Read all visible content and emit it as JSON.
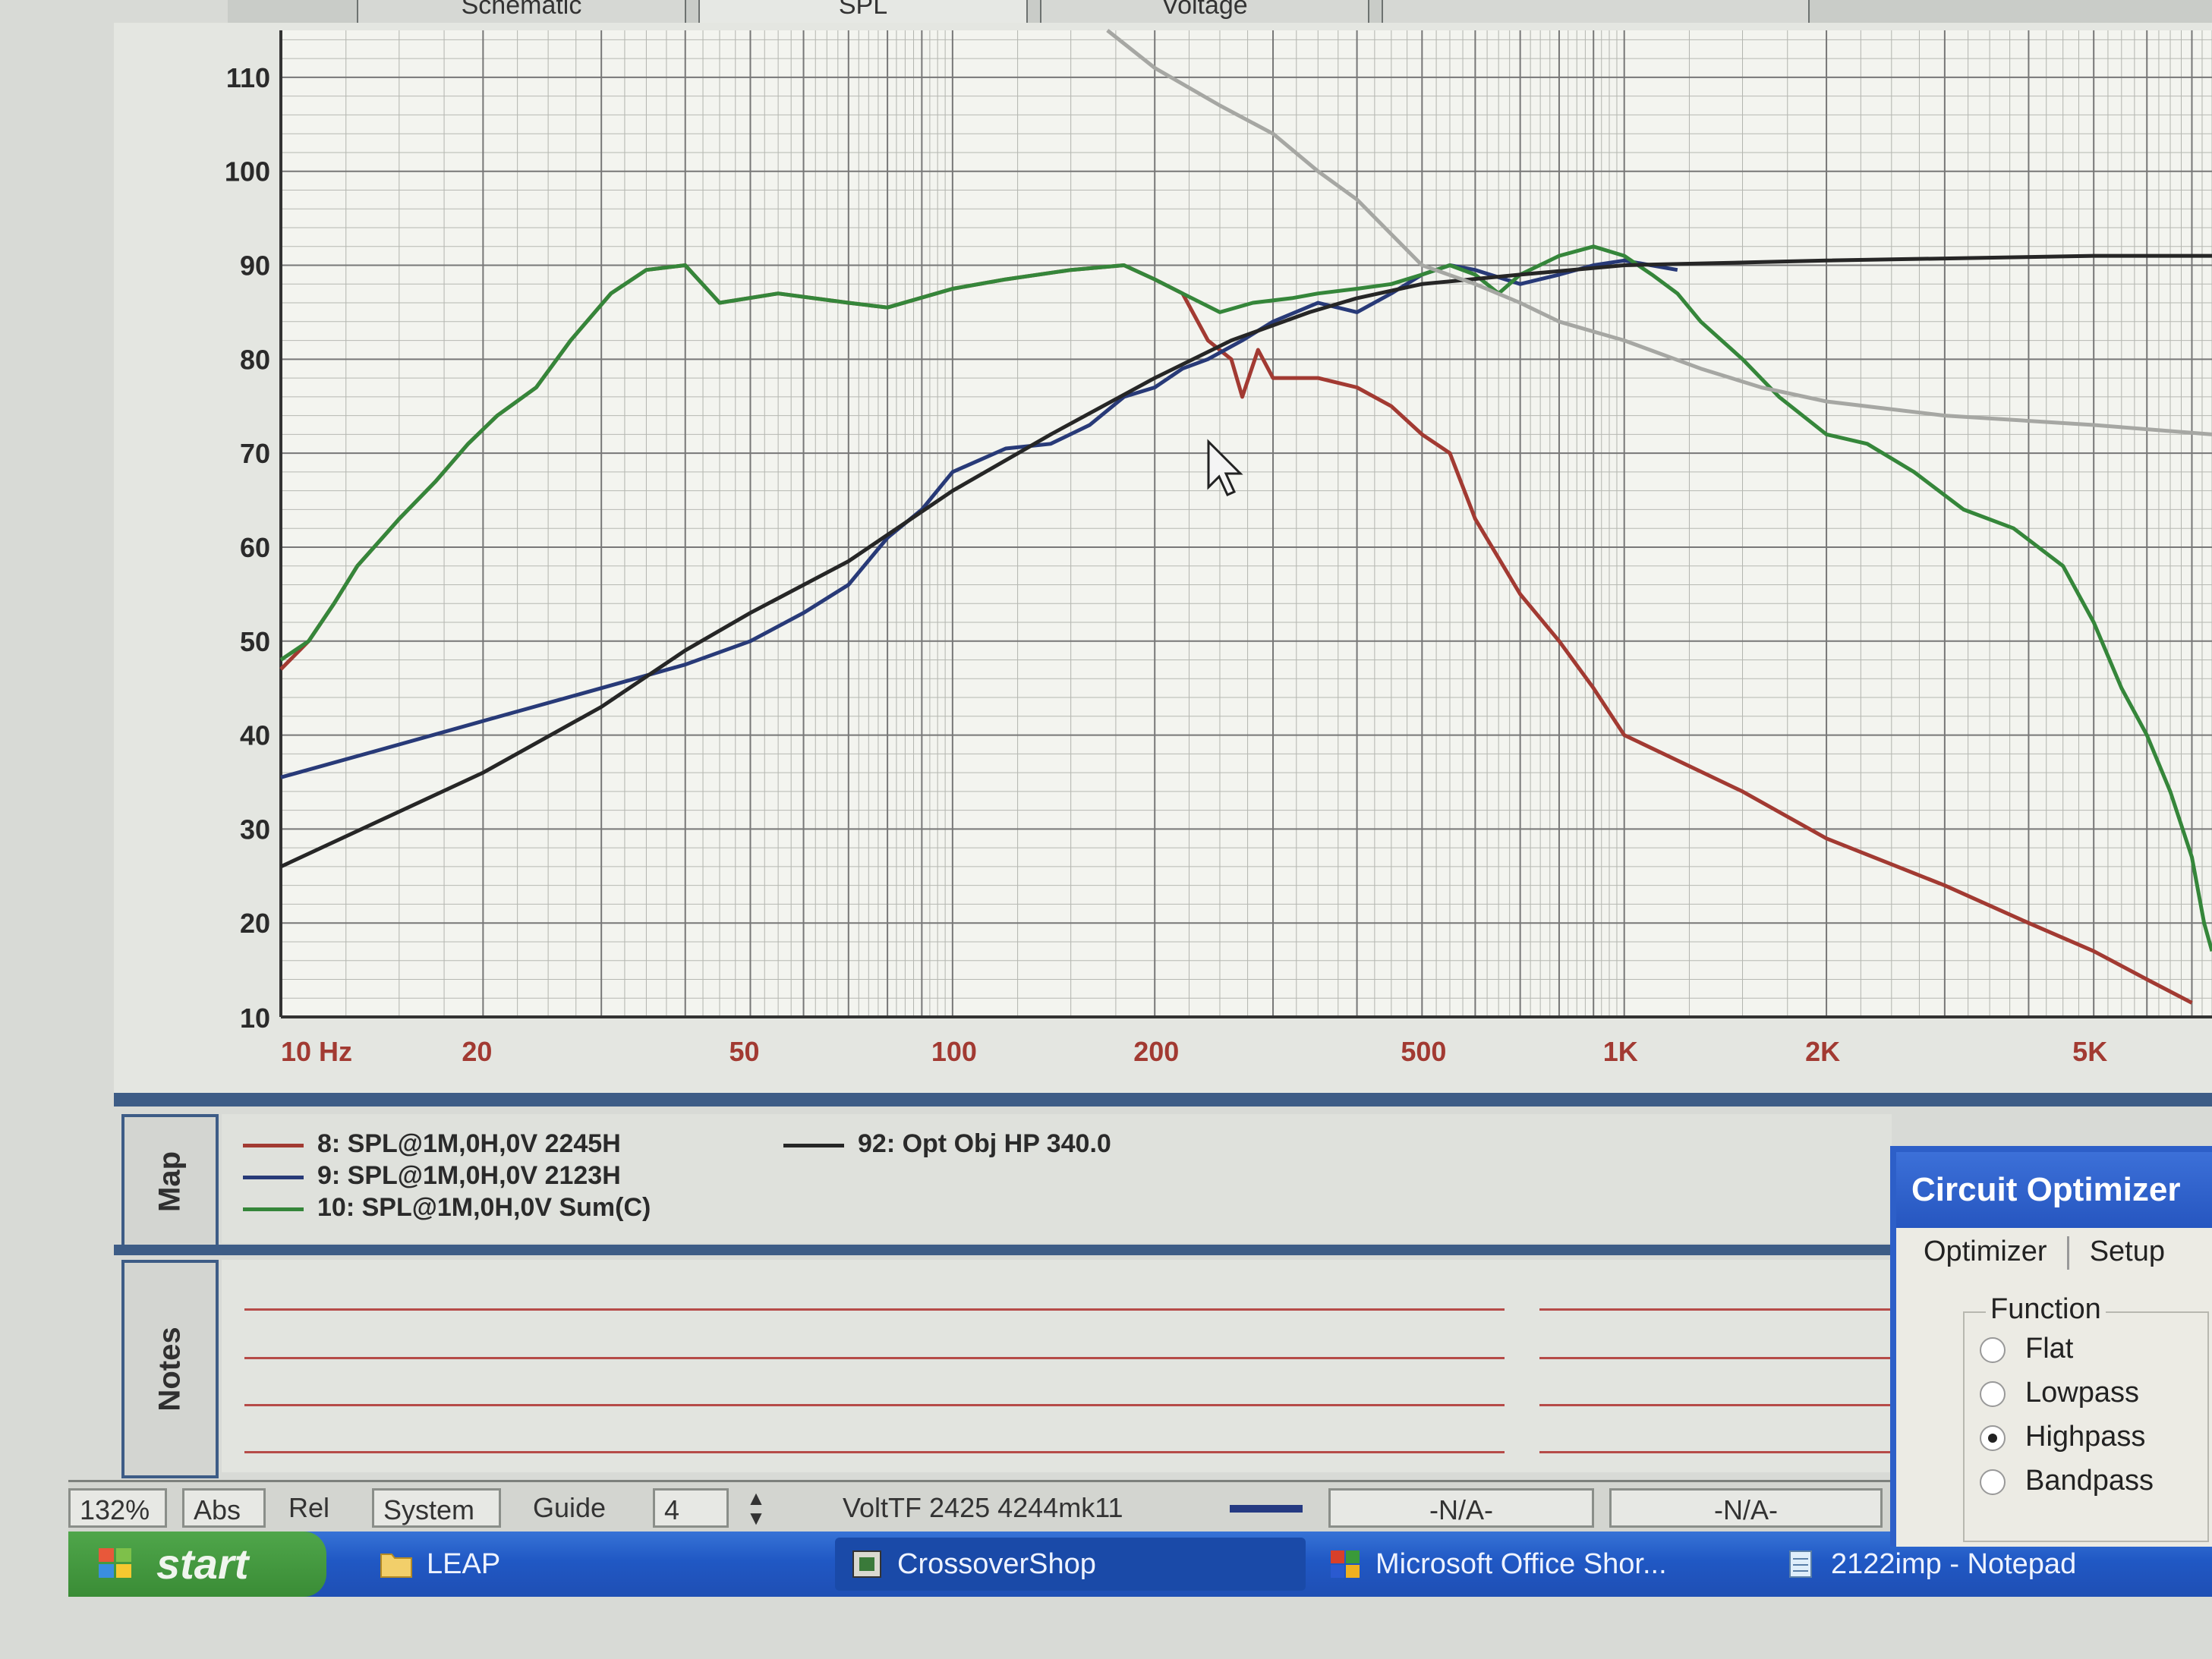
{
  "tabs": [
    "Schematic",
    "SPL",
    "Voltage",
    ""
  ],
  "chart_data": {
    "type": "line",
    "xscale": "log",
    "xlim": [
      10,
      7500
    ],
    "ylim": [
      10,
      115
    ],
    "ytick_values": [
      20,
      30,
      40,
      50,
      60,
      70,
      80,
      90,
      100,
      110
    ],
    "ytick_labels": [
      "20",
      "30",
      "40",
      "50",
      "60",
      "70",
      "80",
      "90",
      "100",
      "110"
    ],
    "xtick_values": [
      10,
      20,
      50,
      100,
      200,
      500,
      1000,
      2000,
      5000
    ],
    "xtick_labels": [
      "10  Hz",
      "20",
      "50",
      "100",
      "200",
      "500",
      "1K",
      "2K",
      "5K"
    ],
    "y_bottom_label": "10",
    "grid": true,
    "series": [
      {
        "name": "8: SPL@1M,0H,0V 2245H",
        "color": "#a23a32",
        "points": [
          [
            10,
            47
          ],
          [
            11,
            50
          ],
          [
            12,
            54
          ],
          [
            13,
            58
          ],
          [
            15,
            63
          ],
          [
            17,
            67
          ],
          [
            19,
            71
          ],
          [
            21,
            74
          ],
          [
            24,
            77
          ],
          [
            27,
            82
          ],
          [
            31,
            87
          ],
          [
            35,
            89.5
          ],
          [
            40,
            90
          ],
          [
            45,
            86
          ],
          [
            55,
            87
          ],
          [
            70,
            86
          ],
          [
            80,
            85.5
          ],
          [
            100,
            87.5
          ],
          [
            120,
            88.5
          ],
          [
            150,
            89.5
          ],
          [
            180,
            90
          ],
          [
            200,
            88.5
          ],
          [
            220,
            87
          ],
          [
            240,
            82
          ],
          [
            260,
            80
          ],
          [
            270,
            76
          ],
          [
            285,
            81
          ],
          [
            300,
            78
          ],
          [
            350,
            78
          ],
          [
            400,
            77
          ],
          [
            450,
            75
          ],
          [
            500,
            72
          ],
          [
            550,
            70
          ],
          [
            600,
            63
          ],
          [
            700,
            55
          ],
          [
            800,
            50
          ],
          [
            900,
            45
          ],
          [
            1000,
            40
          ],
          [
            1500,
            34
          ],
          [
            2000,
            29
          ],
          [
            3000,
            24
          ],
          [
            4000,
            20
          ],
          [
            5000,
            17
          ],
          [
            6000,
            14
          ],
          [
            7000,
            11.5
          ]
        ]
      },
      {
        "name": "9: SPL@1M,0H,0V 2123H",
        "color": "#283a78",
        "points": [
          [
            10,
            35.5
          ],
          [
            15,
            39
          ],
          [
            20,
            41.5
          ],
          [
            30,
            45
          ],
          [
            40,
            47.5
          ],
          [
            50,
            50
          ],
          [
            60,
            53
          ],
          [
            70,
            56
          ],
          [
            80,
            61
          ],
          [
            90,
            64
          ],
          [
            100,
            68
          ],
          [
            120,
            70.5
          ],
          [
            140,
            71
          ],
          [
            160,
            73
          ],
          [
            180,
            76
          ],
          [
            200,
            77
          ],
          [
            220,
            79
          ],
          [
            240,
            80
          ],
          [
            270,
            82
          ],
          [
            300,
            84
          ],
          [
            350,
            86
          ],
          [
            400,
            85
          ],
          [
            450,
            87
          ],
          [
            500,
            89
          ],
          [
            550,
            90
          ],
          [
            600,
            89.5
          ],
          [
            700,
            88
          ],
          [
            800,
            89
          ],
          [
            900,
            90
          ],
          [
            1000,
            90.5
          ],
          [
            1200,
            89.5
          ]
        ]
      },
      {
        "name": "10: SPL@1M,0H,0V Sum(C)",
        "color": "#35863a",
        "points": [
          [
            10,
            48
          ],
          [
            11,
            50
          ],
          [
            12,
            54
          ],
          [
            13,
            58
          ],
          [
            15,
            63
          ],
          [
            17,
            67
          ],
          [
            19,
            71
          ],
          [
            21,
            74
          ],
          [
            24,
            77
          ],
          [
            27,
            82
          ],
          [
            31,
            87
          ],
          [
            35,
            89.5
          ],
          [
            40,
            90
          ],
          [
            45,
            86
          ],
          [
            55,
            87
          ],
          [
            70,
            86
          ],
          [
            80,
            85.5
          ],
          [
            100,
            87.5
          ],
          [
            120,
            88.5
          ],
          [
            150,
            89.5
          ],
          [
            180,
            90
          ],
          [
            200,
            88.5
          ],
          [
            220,
            87
          ],
          [
            250,
            85
          ],
          [
            280,
            86
          ],
          [
            320,
            86.5
          ],
          [
            350,
            87
          ],
          [
            400,
            87.5
          ],
          [
            450,
            88
          ],
          [
            500,
            89
          ],
          [
            550,
            90
          ],
          [
            600,
            89
          ],
          [
            650,
            87
          ],
          [
            700,
            89
          ],
          [
            800,
            91
          ],
          [
            900,
            92
          ],
          [
            1000,
            91
          ],
          [
            1100,
            89
          ],
          [
            1200,
            87
          ],
          [
            1300,
            84
          ],
          [
            1500,
            80
          ],
          [
            1700,
            76
          ],
          [
            2000,
            72
          ],
          [
            2300,
            71
          ],
          [
            2700,
            68
          ],
          [
            3200,
            64
          ],
          [
            3800,
            62
          ],
          [
            4500,
            58
          ],
          [
            5000,
            52
          ],
          [
            5500,
            45
          ],
          [
            6000,
            40
          ],
          [
            6500,
            34
          ],
          [
            7000,
            27
          ],
          [
            7300,
            20
          ],
          [
            7500,
            17
          ]
        ]
      },
      {
        "name": "92: Opt Obj HP  340.0",
        "color": "#262626",
        "points": [
          [
            10,
            26
          ],
          [
            20,
            36
          ],
          [
            30,
            43
          ],
          [
            40,
            49
          ],
          [
            50,
            53
          ],
          [
            70,
            58.5
          ],
          [
            100,
            66
          ],
          [
            140,
            72
          ],
          [
            200,
            78
          ],
          [
            260,
            82
          ],
          [
            340,
            85
          ],
          [
            400,
            86.5
          ],
          [
            500,
            88
          ],
          [
            700,
            89
          ],
          [
            1000,
            90
          ],
          [
            2000,
            90.5
          ],
          [
            5000,
            91
          ],
          [
            7500,
            91
          ]
        ]
      },
      {
        "name": "",
        "color": "#a6a7a3",
        "points": [
          [
            170,
            115
          ],
          [
            200,
            111
          ],
          [
            250,
            107
          ],
          [
            300,
            104
          ],
          [
            350,
            100
          ],
          [
            400,
            97
          ],
          [
            500,
            90
          ],
          [
            600,
            88
          ],
          [
            700,
            86
          ],
          [
            800,
            84
          ],
          [
            1000,
            82
          ],
          [
            1300,
            79
          ],
          [
            1600,
            77
          ],
          [
            2000,
            75.5
          ],
          [
            3000,
            74
          ],
          [
            5000,
            73
          ],
          [
            7500,
            72
          ]
        ]
      }
    ]
  },
  "legend": {
    "items": [
      {
        "text": "8: SPL@1M,0H,0V 2245H",
        "color": "#a23a32"
      },
      {
        "text": "9: SPL@1M,0H,0V 2123H",
        "color": "#283a78"
      },
      {
        "text": "10: SPL@1M,0H,0V Sum(C)",
        "color": "#35863a"
      },
      {
        "text": "92: Opt Obj HP  340.0",
        "color": "#262626"
      }
    ]
  },
  "side_panels": {
    "map": "Map",
    "notes": "Notes"
  },
  "statusbar": {
    "zoom": "132%",
    "abs": "Abs",
    "rel": "Rel",
    "system": "System",
    "guide": "Guide",
    "spin_value": "4",
    "file": "VoltTF 2425 4244mk11",
    "na1": "-N/A-",
    "na2": "-N/A-"
  },
  "taskbar": {
    "start": "start",
    "items": [
      "LEAP",
      "CrossoverShop",
      "Microsoft Office Shor...",
      "2122imp - Notepad"
    ]
  },
  "dialog": {
    "title": "Circuit Optimizer",
    "tab_optimizer": "Optimizer",
    "tab_setup": "Setup",
    "function_label": "Function",
    "options": [
      "Flat",
      "Lowpass",
      "Highpass",
      "Bandpass"
    ],
    "selected": "Highpass"
  }
}
